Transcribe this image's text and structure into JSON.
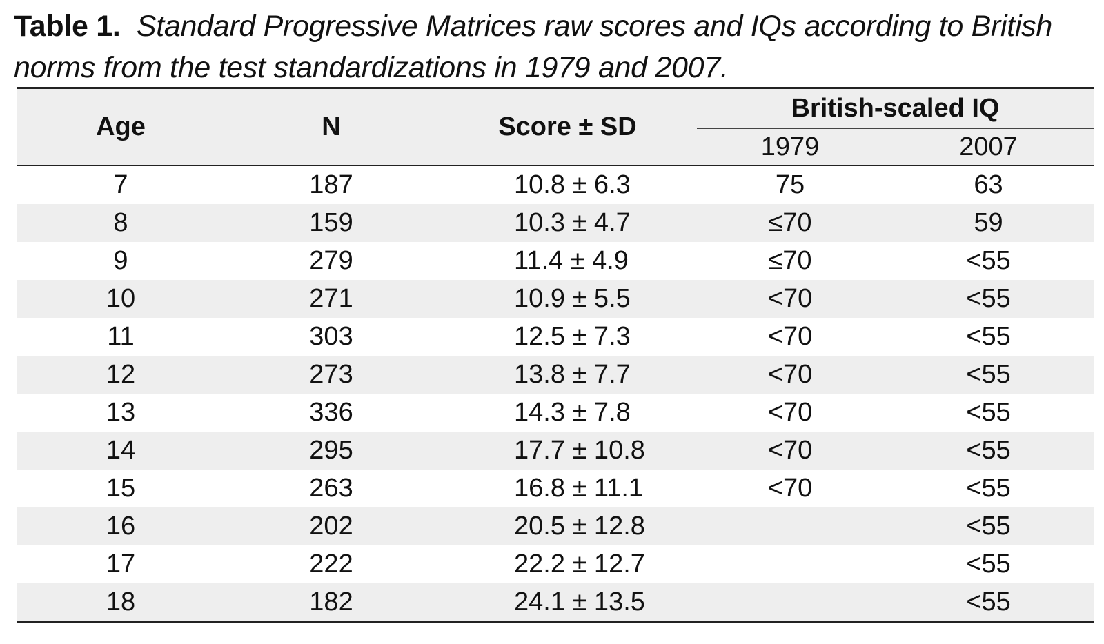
{
  "caption": {
    "label": "Table 1.",
    "text": "Standard Progressive Matrices raw scores and IQs according to British norms from the test standardizations in 1979 and 2007."
  },
  "table": {
    "headers": {
      "age": "Age",
      "n": "N",
      "score": "Score ± SD",
      "group": "British-scaled IQ",
      "year_1979": "1979",
      "year_2007": "2007"
    },
    "rows": [
      {
        "age": "7",
        "n": "187",
        "score": "10.8 ± 6.3",
        "iq_1979": "75",
        "iq_2007": "63"
      },
      {
        "age": "8",
        "n": "159",
        "score": "10.3 ± 4.7",
        "iq_1979": "≤70",
        "iq_2007": "59"
      },
      {
        "age": "9",
        "n": "279",
        "score": "11.4 ± 4.9",
        "iq_1979": "≤70",
        "iq_2007": "<55"
      },
      {
        "age": "10",
        "n": "271",
        "score": "10.9 ± 5.5",
        "iq_1979": "<70",
        "iq_2007": "<55"
      },
      {
        "age": "11",
        "n": "303",
        "score": "12.5 ± 7.3",
        "iq_1979": "<70",
        "iq_2007": "<55"
      },
      {
        "age": "12",
        "n": "273",
        "score": "13.8 ± 7.7",
        "iq_1979": "<70",
        "iq_2007": "<55"
      },
      {
        "age": "13",
        "n": "336",
        "score": "14.3 ± 7.8",
        "iq_1979": "<70",
        "iq_2007": "<55"
      },
      {
        "age": "14",
        "n": "295",
        "score": "17.7 ± 10.8",
        "iq_1979": "<70",
        "iq_2007": "<55"
      },
      {
        "age": "15",
        "n": "263",
        "score": "16.8 ± 11.1",
        "iq_1979": "<70",
        "iq_2007": "<55"
      },
      {
        "age": "16",
        "n": "202",
        "score": "20.5 ± 12.8",
        "iq_1979": "",
        "iq_2007": "<55"
      },
      {
        "age": "17",
        "n": "222",
        "score": "22.2 ± 12.7",
        "iq_1979": "",
        "iq_2007": "<55"
      },
      {
        "age": "18",
        "n": "182",
        "score": "24.1 ± 13.5",
        "iq_1979": "",
        "iq_2007": "<55"
      }
    ]
  }
}
